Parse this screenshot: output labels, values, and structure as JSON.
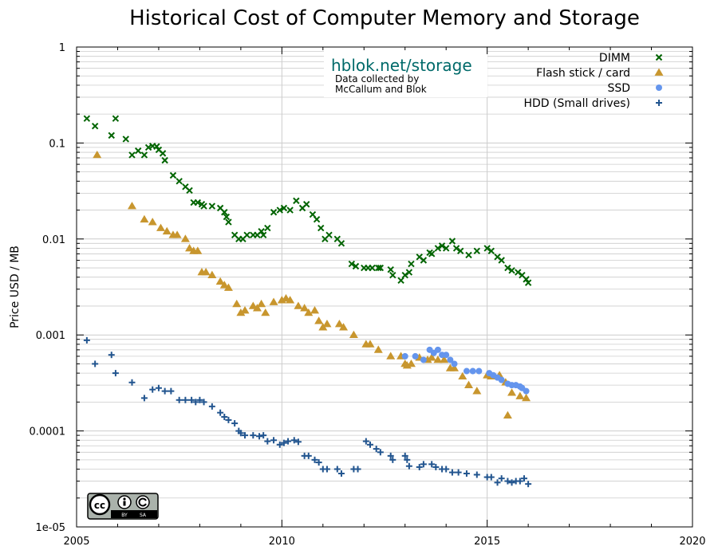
{
  "chart_data": {
    "type": "scatter",
    "title": "Historical Cost of Computer Memory and Storage",
    "xlabel": "",
    "ylabel": "Price USD / MB",
    "y_scale": "log",
    "xlim": [
      2005,
      2020
    ],
    "ylim": [
      1e-05,
      1
    ],
    "grid": true,
    "legend_position": "top-right",
    "x_ticks": [
      {
        "value": 2005,
        "label": "2005"
      },
      {
        "value": 2010,
        "label": "2010"
      },
      {
        "value": 2015,
        "label": "2015"
      },
      {
        "value": 2020,
        "label": "2020"
      }
    ],
    "y_ticks": [
      {
        "value": 1,
        "label": "1"
      },
      {
        "value": 0.1,
        "label": "0.1"
      },
      {
        "value": 0.01,
        "label": "0.01"
      },
      {
        "value": 0.001,
        "label": "0.001"
      },
      {
        "value": 0.0001,
        "label": "0.0001"
      },
      {
        "value": 1e-05,
        "label": "1e-05"
      }
    ],
    "annotation": {
      "site": "hblok.net/storage",
      "credit_lines": [
        "Data collected by",
        "McCallum and Blok"
      ]
    },
    "series": [
      {
        "name": "DIMM",
        "color": "#006400",
        "marker": "x",
        "points": [
          [
            2005.25,
            0.18
          ],
          [
            2005.45,
            0.15
          ],
          [
            2005.85,
            0.12
          ],
          [
            2005.95,
            0.18
          ],
          [
            2006.2,
            0.11
          ],
          [
            2006.35,
            0.075
          ],
          [
            2006.5,
            0.083
          ],
          [
            2006.65,
            0.075
          ],
          [
            2006.75,
            0.09
          ],
          [
            2006.85,
            0.093
          ],
          [
            2006.95,
            0.092
          ],
          [
            2007.0,
            0.085
          ],
          [
            2007.1,
            0.078
          ],
          [
            2007.15,
            0.066
          ],
          [
            2007.35,
            0.046
          ],
          [
            2007.5,
            0.04
          ],
          [
            2007.65,
            0.035
          ],
          [
            2007.75,
            0.032
          ],
          [
            2007.85,
            0.024
          ],
          [
            2007.95,
            0.024
          ],
          [
            2008.05,
            0.023
          ],
          [
            2008.1,
            0.022
          ],
          [
            2008.3,
            0.022
          ],
          [
            2008.5,
            0.021
          ],
          [
            2008.6,
            0.019
          ],
          [
            2008.65,
            0.017
          ],
          [
            2008.7,
            0.015
          ],
          [
            2008.85,
            0.011
          ],
          [
            2008.95,
            0.01
          ],
          [
            2009.05,
            0.01
          ],
          [
            2009.15,
            0.011
          ],
          [
            2009.3,
            0.011
          ],
          [
            2009.4,
            0.011
          ],
          [
            2009.5,
            0.012
          ],
          [
            2009.55,
            0.011
          ],
          [
            2009.65,
            0.013
          ],
          [
            2009.8,
            0.019
          ],
          [
            2009.95,
            0.02
          ],
          [
            2010.05,
            0.021
          ],
          [
            2010.2,
            0.02
          ],
          [
            2010.35,
            0.025
          ],
          [
            2010.5,
            0.021
          ],
          [
            2010.6,
            0.023
          ],
          [
            2010.75,
            0.018
          ],
          [
            2010.85,
            0.016
          ],
          [
            2010.95,
            0.013
          ],
          [
            2011.05,
            0.01
          ],
          [
            2011.15,
            0.011
          ],
          [
            2011.35,
            0.01
          ],
          [
            2011.45,
            0.009
          ],
          [
            2011.7,
            0.0055
          ],
          [
            2011.8,
            0.0052
          ],
          [
            2012.0,
            0.005
          ],
          [
            2012.1,
            0.005
          ],
          [
            2012.2,
            0.005
          ],
          [
            2012.35,
            0.005
          ],
          [
            2012.4,
            0.005
          ],
          [
            2012.65,
            0.0048
          ],
          [
            2012.7,
            0.0042
          ],
          [
            2012.9,
            0.0037
          ],
          [
            2013.0,
            0.0042
          ],
          [
            2013.1,
            0.0045
          ],
          [
            2013.15,
            0.0055
          ],
          [
            2013.35,
            0.0065
          ],
          [
            2013.45,
            0.006
          ],
          [
            2013.6,
            0.0072
          ],
          [
            2013.65,
            0.007
          ],
          [
            2013.8,
            0.008
          ],
          [
            2013.9,
            0.0085
          ],
          [
            2014.0,
            0.008
          ],
          [
            2014.15,
            0.0095
          ],
          [
            2014.25,
            0.008
          ],
          [
            2014.35,
            0.0075
          ],
          [
            2014.55,
            0.0068
          ],
          [
            2014.75,
            0.0075
          ],
          [
            2015.0,
            0.008
          ],
          [
            2015.1,
            0.0075
          ],
          [
            2015.25,
            0.0065
          ],
          [
            2015.35,
            0.006
          ],
          [
            2015.5,
            0.005
          ],
          [
            2015.6,
            0.0047
          ],
          [
            2015.75,
            0.0045
          ],
          [
            2015.85,
            0.0042
          ],
          [
            2015.95,
            0.0038
          ],
          [
            2016.0,
            0.0035
          ]
        ]
      },
      {
        "name": "Flash stick / card",
        "color": "#c8962e",
        "marker": "triangle",
        "points": [
          [
            2005.5,
            0.075
          ],
          [
            2006.35,
            0.022
          ],
          [
            2006.65,
            0.016
          ],
          [
            2006.85,
            0.015
          ],
          [
            2007.05,
            0.013
          ],
          [
            2007.2,
            0.012
          ],
          [
            2007.35,
            0.011
          ],
          [
            2007.45,
            0.011
          ],
          [
            2007.65,
            0.01
          ],
          [
            2007.75,
            0.008
          ],
          [
            2007.85,
            0.0075
          ],
          [
            2007.95,
            0.0075
          ],
          [
            2008.05,
            0.0045
          ],
          [
            2008.15,
            0.0045
          ],
          [
            2008.3,
            0.0042
          ],
          [
            2008.5,
            0.0036
          ],
          [
            2008.6,
            0.0033
          ],
          [
            2008.7,
            0.0031
          ],
          [
            2008.9,
            0.0021
          ],
          [
            2009.0,
            0.0017
          ],
          [
            2009.1,
            0.0018
          ],
          [
            2009.3,
            0.002
          ],
          [
            2009.4,
            0.0019
          ],
          [
            2009.5,
            0.0021
          ],
          [
            2009.6,
            0.0017
          ],
          [
            2009.8,
            0.0022
          ],
          [
            2010.0,
            0.0023
          ],
          [
            2010.1,
            0.0024
          ],
          [
            2010.2,
            0.0023
          ],
          [
            2010.4,
            0.002
          ],
          [
            2010.55,
            0.0019
          ],
          [
            2010.65,
            0.0017
          ],
          [
            2010.8,
            0.0018
          ],
          [
            2010.9,
            0.0014
          ],
          [
            2011.0,
            0.0012
          ],
          [
            2011.1,
            0.0013
          ],
          [
            2011.4,
            0.0013
          ],
          [
            2011.5,
            0.0012
          ],
          [
            2011.75,
            0.001
          ],
          [
            2012.05,
            0.0008
          ],
          [
            2012.15,
            0.0008
          ],
          [
            2012.35,
            0.0007
          ],
          [
            2012.65,
            0.0006
          ],
          [
            2012.9,
            0.0006
          ],
          [
            2013.0,
            0.0005
          ],
          [
            2013.05,
            0.00048
          ],
          [
            2013.15,
            0.0005
          ],
          [
            2013.35,
            0.00058
          ],
          [
            2013.55,
            0.00055
          ],
          [
            2013.65,
            0.00058
          ],
          [
            2013.8,
            0.00055
          ],
          [
            2013.95,
            0.00055
          ],
          [
            2014.1,
            0.00045
          ],
          [
            2014.2,
            0.00045
          ],
          [
            2014.4,
            0.00037
          ],
          [
            2014.55,
            0.0003
          ],
          [
            2014.75,
            0.00026
          ],
          [
            2015.0,
            0.00038
          ],
          [
            2015.1,
            0.00037
          ],
          [
            2015.3,
            0.00038
          ],
          [
            2015.45,
            0.00032
          ],
          [
            2015.5,
            0.000145
          ],
          [
            2015.6,
            0.00025
          ],
          [
            2015.8,
            0.00023
          ],
          [
            2015.95,
            0.00022
          ]
        ]
      },
      {
        "name": "SSD",
        "color": "#6495ed",
        "marker": "circle",
        "points": [
          [
            2013.0,
            0.0006
          ],
          [
            2013.25,
            0.0006
          ],
          [
            2013.45,
            0.00055
          ],
          [
            2013.6,
            0.0007
          ],
          [
            2013.7,
            0.00065
          ],
          [
            2013.8,
            0.0007
          ],
          [
            2013.9,
            0.00062
          ],
          [
            2014.0,
            0.00062
          ],
          [
            2014.1,
            0.00055
          ],
          [
            2014.2,
            0.0005
          ],
          [
            2014.5,
            0.00042
          ],
          [
            2014.65,
            0.00042
          ],
          [
            2014.8,
            0.00042
          ],
          [
            2015.05,
            0.0004
          ],
          [
            2015.15,
            0.00038
          ],
          [
            2015.25,
            0.00036
          ],
          [
            2015.35,
            0.00034
          ],
          [
            2015.5,
            0.00031
          ],
          [
            2015.6,
            0.0003
          ],
          [
            2015.7,
            0.0003
          ],
          [
            2015.8,
            0.00029
          ],
          [
            2015.85,
            0.00028
          ],
          [
            2015.95,
            0.00026
          ]
        ]
      },
      {
        "name": "HDD (Small drives)",
        "color": "#22558f",
        "marker": "plus",
        "points": [
          [
            2005.25,
            0.00088
          ],
          [
            2005.45,
            0.0005
          ],
          [
            2005.85,
            0.00062
          ],
          [
            2005.95,
            0.0004
          ],
          [
            2006.35,
            0.00032
          ],
          [
            2006.65,
            0.00022
          ],
          [
            2006.85,
            0.00027
          ],
          [
            2007.0,
            0.00028
          ],
          [
            2007.15,
            0.00026
          ],
          [
            2007.3,
            0.00026
          ],
          [
            2007.5,
            0.00021
          ],
          [
            2007.65,
            0.00021
          ],
          [
            2007.8,
            0.00021
          ],
          [
            2007.9,
            0.0002
          ],
          [
            2008.0,
            0.00021
          ],
          [
            2008.1,
            0.0002
          ],
          [
            2008.3,
            0.00018
          ],
          [
            2008.5,
            0.000155
          ],
          [
            2008.6,
            0.00014
          ],
          [
            2008.7,
            0.00013
          ],
          [
            2008.85,
            0.00012
          ],
          [
            2008.95,
            0.0001
          ],
          [
            2009.0,
            9.5e-05
          ],
          [
            2009.1,
            9e-05
          ],
          [
            2009.3,
            9e-05
          ],
          [
            2009.45,
            8.8e-05
          ],
          [
            2009.55,
            9e-05
          ],
          [
            2009.65,
            7.8e-05
          ],
          [
            2009.8,
            8e-05
          ],
          [
            2009.95,
            7.2e-05
          ],
          [
            2010.05,
            7.5e-05
          ],
          [
            2010.15,
            7.8e-05
          ],
          [
            2010.3,
            8e-05
          ],
          [
            2010.4,
            7.7e-05
          ],
          [
            2010.55,
            5.5e-05
          ],
          [
            2010.65,
            5.5e-05
          ],
          [
            2010.8,
            5e-05
          ],
          [
            2010.9,
            4.7e-05
          ],
          [
            2011.0,
            4e-05
          ],
          [
            2011.1,
            4e-05
          ],
          [
            2011.35,
            4e-05
          ],
          [
            2011.45,
            3.6e-05
          ],
          [
            2011.75,
            4e-05
          ],
          [
            2011.85,
            4e-05
          ],
          [
            2012.05,
            7.8e-05
          ],
          [
            2012.15,
            7.2e-05
          ],
          [
            2012.3,
            6.5e-05
          ],
          [
            2012.4,
            6e-05
          ],
          [
            2012.65,
            5.5e-05
          ],
          [
            2012.7,
            5e-05
          ],
          [
            2013.0,
            5.5e-05
          ],
          [
            2013.05,
            5e-05
          ],
          [
            2013.1,
            4.3e-05
          ],
          [
            2013.35,
            4.2e-05
          ],
          [
            2013.45,
            4.5e-05
          ],
          [
            2013.65,
            4.5e-05
          ],
          [
            2013.75,
            4.2e-05
          ],
          [
            2013.9,
            4e-05
          ],
          [
            2014.0,
            4e-05
          ],
          [
            2014.15,
            3.7e-05
          ],
          [
            2014.3,
            3.7e-05
          ],
          [
            2014.5,
            3.6e-05
          ],
          [
            2014.75,
            3.5e-05
          ],
          [
            2015.0,
            3.3e-05
          ],
          [
            2015.1,
            3.3e-05
          ],
          [
            2015.25,
            2.9e-05
          ],
          [
            2015.35,
            3.2e-05
          ],
          [
            2015.5,
            3e-05
          ],
          [
            2015.6,
            2.9e-05
          ],
          [
            2015.7,
            3e-05
          ],
          [
            2015.8,
            3e-05
          ],
          [
            2015.9,
            3.2e-05
          ],
          [
            2016.0,
            2.8e-05
          ]
        ]
      }
    ]
  }
}
